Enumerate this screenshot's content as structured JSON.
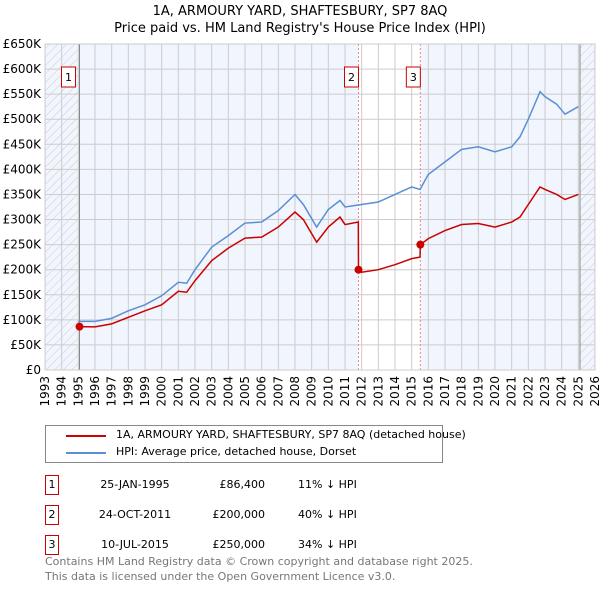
{
  "chart_data": {
    "type": "line",
    "title": "1A, ARMOURY YARD, SHAFTESBURY, SP7 8AQ",
    "subtitle": "Price paid vs. HM Land Registry's House Price Index (HPI)",
    "xlim": [
      1993,
      2026
    ],
    "ylim": [
      0,
      650000
    ],
    "x_ticks": [
      "1993",
      "1994",
      "1995",
      "1996",
      "1997",
      "1998",
      "1999",
      "2000",
      "2001",
      "2002",
      "2003",
      "2004",
      "2005",
      "2006",
      "2007",
      "2008",
      "2009",
      "2010",
      "2011",
      "2012",
      "2013",
      "2014",
      "2015",
      "2016",
      "2017",
      "2018",
      "2019",
      "2020",
      "2021",
      "2022",
      "2023",
      "2024",
      "2025",
      "2026"
    ],
    "y_ticks": [
      "£0",
      "£50K",
      "£100K",
      "£150K",
      "£200K",
      "£250K",
      "£300K",
      "£350K",
      "£400K",
      "£450K",
      "£500K",
      "£550K",
      "£600K",
      "£650K"
    ],
    "series": [
      {
        "name": "1A, ARMOURY YARD, SHAFTESBURY, SP7 8AQ (detached house)",
        "color": "#cc0000",
        "x": [
          1995.07,
          1996,
          1997,
          1998,
          1999,
          2000,
          2001,
          2001.5,
          2002,
          2003,
          2004,
          2005,
          2006,
          2007,
          2008,
          2008.5,
          2009.3,
          2010,
          2010.7,
          2011,
          2011.8,
          2011.81,
          2012,
          2013,
          2014,
          2015,
          2015.5,
          2015.52,
          2016,
          2017,
          2018,
          2019,
          2020,
          2021,
          2021.5,
          2022,
          2022.7,
          2023,
          2023.7,
          2024.2,
          2025
        ],
        "y": [
          86400,
          86000,
          92000,
          105000,
          118000,
          130000,
          157000,
          155000,
          178000,
          218000,
          243000,
          263000,
          265000,
          285000,
          315000,
          300000,
          255000,
          285000,
          305000,
          290000,
          295000,
          200000,
          195000,
          200000,
          210000,
          222000,
          225000,
          250000,
          262000,
          278000,
          290000,
          292000,
          285000,
          295000,
          305000,
          330000,
          365000,
          360000,
          350000,
          340000,
          350000
        ]
      },
      {
        "name": "HPI: Average price, detached house, Dorset",
        "color": "#5b8fd4",
        "x": [
          1995,
          1996,
          1997,
          1998,
          1999,
          2000,
          2001,
          2001.5,
          2002,
          2003,
          2004,
          2005,
          2006,
          2007,
          2008,
          2008.5,
          2009.3,
          2010,
          2010.7,
          2011,
          2012,
          2013,
          2014,
          2015,
          2015.5,
          2016,
          2017,
          2018,
          2019,
          2020,
          2021,
          2021.5,
          2022,
          2022.7,
          2023,
          2023.7,
          2024.2,
          2025
        ],
        "y": [
          97000,
          97000,
          103000,
          118000,
          130000,
          148000,
          175000,
          173000,
          200000,
          245000,
          268000,
          293000,
          295000,
          318000,
          350000,
          330000,
          285000,
          320000,
          338000,
          325000,
          330000,
          335000,
          350000,
          365000,
          360000,
          390000,
          415000,
          440000,
          445000,
          435000,
          445000,
          465000,
          500000,
          555000,
          545000,
          530000,
          510000,
          525000
        ]
      }
    ],
    "sales": [
      {
        "label": "1",
        "x": 1995.07,
        "y": 86400
      },
      {
        "label": "2",
        "x": 2011.81,
        "y": 200000
      },
      {
        "label": "3",
        "x": 2015.52,
        "y": 250000
      }
    ],
    "grid": true
  },
  "legend": {
    "property": "1A, ARMOURY YARD, SHAFTESBURY, SP7 8AQ (detached house)",
    "hpi": "HPI: Average price, detached house, Dorset"
  },
  "transactions": [
    {
      "num": "1",
      "date": "25-JAN-1995",
      "price": "£86,400",
      "hpi": "11% ↓ HPI"
    },
    {
      "num": "2",
      "date": "24-OCT-2011",
      "price": "£200,000",
      "hpi": "40% ↓ HPI"
    },
    {
      "num": "3",
      "date": "10-JUL-2015",
      "price": "£250,000",
      "hpi": "34% ↓ HPI"
    }
  ],
  "footer": [
    "Contains HM Land Registry data © Crown copyright and database right 2025.",
    "This data is licensed under the Open Government Licence v3.0."
  ]
}
